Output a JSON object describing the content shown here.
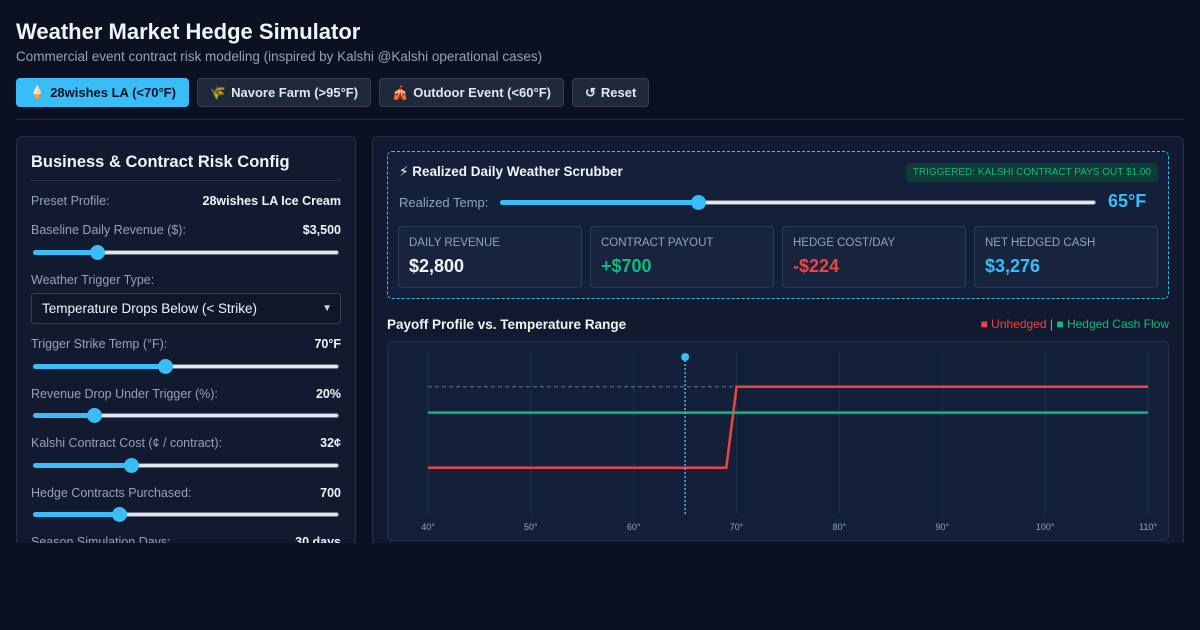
{
  "header": {
    "title": "Weather Market Hedge Simulator",
    "subtitle": "Commercial event contract risk modeling (inspired by Kalshi @Kalshi operational cases)"
  },
  "presets": [
    {
      "icon": "🍦",
      "icon_name": "ice-cream-icon",
      "label": "28wishes LA (<70°F)",
      "active": true
    },
    {
      "icon": "🌾",
      "icon_name": "wheat-icon",
      "label": "Navore Farm (>95°F)",
      "active": false
    },
    {
      "icon": "🎪",
      "icon_name": "circus-tent-icon",
      "label": "Outdoor Event (<60°F)",
      "active": false
    },
    {
      "icon": "↺",
      "icon_name": "reset-icon",
      "label": "Reset",
      "active": false
    }
  ],
  "config": {
    "title": "Business & Contract Risk Config",
    "preset_profile": {
      "label": "Preset Profile:",
      "value": "28wishes LA Ice Cream"
    },
    "baseline_revenue": {
      "label": "Baseline Daily Revenue ($):",
      "value": "$3,500",
      "level": 0.21
    },
    "trigger_type": {
      "label": "Weather Trigger Type:",
      "selected": "Temperature Drops Below (< Strike)"
    },
    "strike_temp": {
      "label": "Trigger Strike Temp (°F):",
      "value": "70°F",
      "level": 0.43
    },
    "revenue_drop": {
      "label": "Revenue Drop Under Trigger (%):",
      "value": "20%",
      "level": 0.2
    },
    "contract_cost": {
      "label": "Kalshi Contract Cost (¢ / contract):",
      "value": "32¢",
      "level": 0.32
    },
    "contracts": {
      "label": "Hedge Contracts Purchased:",
      "value": "700",
      "level": 0.28
    },
    "season_days": {
      "label": "Season Simulation Days:",
      "value": "30 days"
    }
  },
  "scrubber": {
    "title": "⚡ Realized Daily Weather Scrubber",
    "badge": "TRIGGERED: KALSHI CONTRACT PAYS OUT $1.00",
    "label": "Realized Temp:",
    "value": "65°F",
    "level": 0.333
  },
  "metrics": [
    {
      "label": "DAILY REVENUE",
      "value": "$2,800",
      "tone": ""
    },
    {
      "label": "CONTRACT PAYOUT",
      "value": "+$700",
      "tone": "green"
    },
    {
      "label": "HEDGE COST/DAY",
      "value": "-$224",
      "tone": "red"
    },
    {
      "label": "NET HEDGED CASH",
      "value": "$3,276",
      "tone": "blue"
    }
  ],
  "chart_data": {
    "type": "line",
    "title": "Payoff Profile vs. Temperature Range",
    "legend": {
      "unhedged": "■ Unhedged",
      "separator": "|",
      "hedged": "■ Hedged Cash Flow"
    },
    "x_ticks": [
      "40°",
      "50°",
      "60°",
      "70°",
      "80°",
      "90°",
      "100°",
      "110°"
    ],
    "xlim": [
      40,
      110
    ],
    "ylim": [
      2400,
      3800
    ],
    "marker_temp": 65,
    "baseline": 3500,
    "series": [
      {
        "name": "Unhedged",
        "color": "#ef4444",
        "x": [
          40,
          69,
          70,
          110
        ],
        "values": [
          2800,
          2800,
          3500,
          3500
        ]
      },
      {
        "name": "Hedged Cash Flow",
        "color": "#10b981",
        "x": [
          40,
          110
        ],
        "values": [
          3276,
          3276
        ]
      }
    ]
  }
}
